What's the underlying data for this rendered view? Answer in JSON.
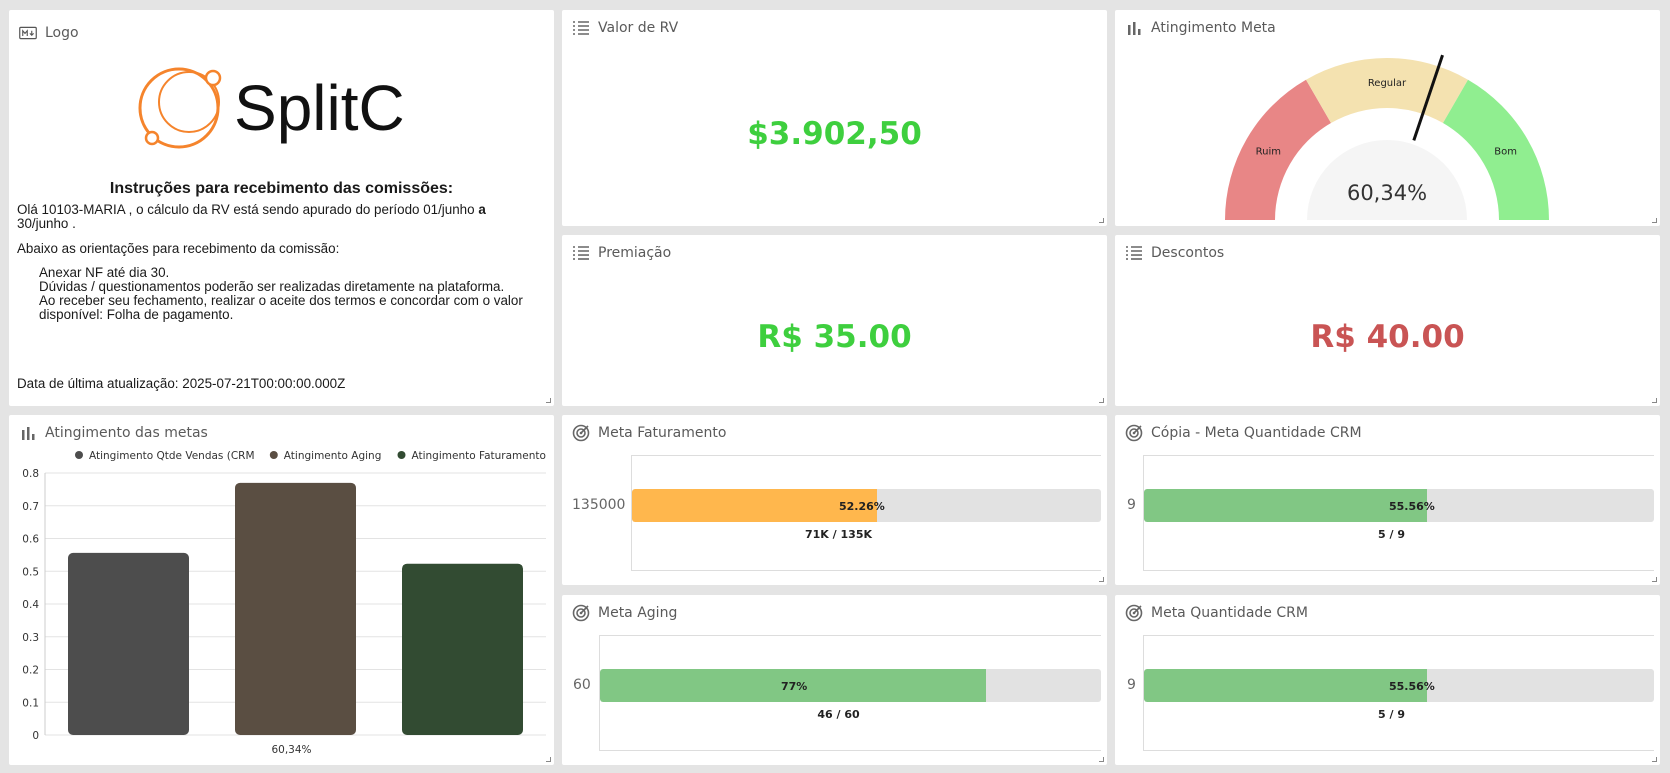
{
  "logo_card": {
    "title": "Logo",
    "brand": "SplitC",
    "instructions_title": "Instruções para recebimento das comissões:",
    "intro_line": "Olá 10103-MARIA , o cálculo da RV está sendo apurado do período 01/junho",
    "intro_a": "a",
    "intro_end": "30/junho .",
    "orientation_line": "Abaixo as orientações para recebimento da comissão:",
    "items": [
      "Anexar NF até dia 30.",
      "Dúvidas / questionamentos poderão ser realizadas diretamente na plataforma.",
      "Ao receber seu fechamento, realizar o aceite dos termos e concordar com o valor disponível: Folha de pagamento."
    ],
    "last_update": "Data de última atualização: 2025-07-21T00:00:00.000Z"
  },
  "valor_rv": {
    "title": "Valor de RV",
    "value": "$3.902,50",
    "color": "#3ecf3e"
  },
  "premiacao": {
    "title": "Premiação",
    "value": "R$ 35.00",
    "color": "#3ecf3e"
  },
  "descontos": {
    "title": "Descontos",
    "value": "R$ 40.00",
    "color": "#c95454"
  },
  "gauge": {
    "title": "Atingimento Meta",
    "value_label": "60,34%",
    "value": 0.6034,
    "segments": [
      {
        "label": "Ruim",
        "color": "#e88686"
      },
      {
        "label": "Regular",
        "color": "#f4e2b0"
      },
      {
        "label": "Bom",
        "color": "#90ee90"
      }
    ]
  },
  "bar_chart": {
    "title": "Atingimento das metas",
    "xlabel": "60,34%",
    "chart_data": {
      "type": "bar",
      "categories": [
        "Atingimento Qtde Vendas (CRM",
        "Atingimento Aging",
        "Atingimento Faturamento"
      ],
      "values": [
        0.556,
        0.77,
        0.523
      ],
      "colors": [
        "#4d4d4d",
        "#5a4e42",
        "#324b32"
      ],
      "ylim": [
        0,
        0.8
      ],
      "yticks": [
        "0",
        "0.1",
        "0.2",
        "0.3",
        "0.4",
        "0.5",
        "0.6",
        "0.7",
        "0.8"
      ],
      "legend": "top",
      "grid": true
    }
  },
  "meta_faturamento": {
    "title": "Meta Faturamento",
    "goal": "135000",
    "pct": "52.26%",
    "fraction": 0.5226,
    "sub": "71K / 135K",
    "color": "#ffb74d"
  },
  "copia_meta_crm": {
    "title": "Cópia - Meta Quantidade CRM",
    "goal": "9",
    "pct": "55.56%",
    "fraction": 0.5556,
    "sub": "5 / 9",
    "color": "#81c784"
  },
  "meta_aging": {
    "title": "Meta Aging",
    "goal": "60",
    "pct": "77%",
    "fraction": 0.77,
    "sub": "46 / 60",
    "color": "#81c784"
  },
  "meta_crm": {
    "title": "Meta Quantidade CRM",
    "goal": "9",
    "pct": "55.56%",
    "fraction": 0.5556,
    "sub": "5 / 9",
    "color": "#81c784"
  }
}
